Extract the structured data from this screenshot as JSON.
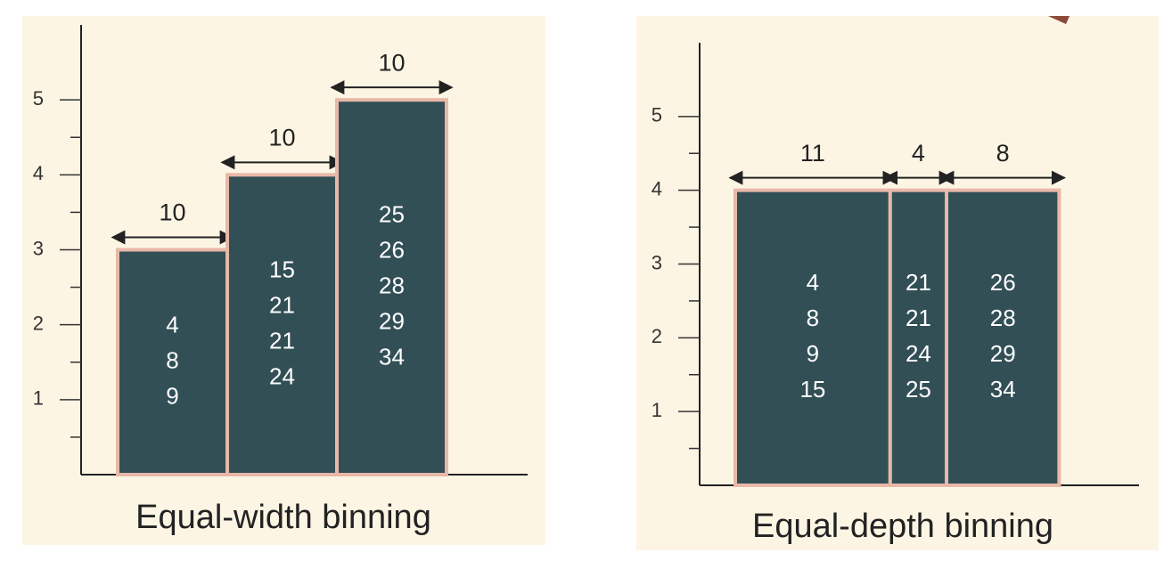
{
  "chart_data": [
    {
      "type": "bar",
      "title": "Equal-width binning",
      "values": [
        3,
        4,
        5
      ],
      "widths": [
        10,
        10,
        10
      ],
      "bin_items": [
        [
          4,
          8,
          9
        ],
        [
          15,
          21,
          21,
          24
        ],
        [
          25,
          26,
          28,
          29,
          34
        ]
      ],
      "color": "#324f56",
      "ylim": [
        0,
        6
      ],
      "yticks": [
        1,
        2,
        3,
        4,
        5
      ],
      "minor_yticks": [
        0.5,
        1.5,
        2.5,
        3.5,
        4.5
      ]
    },
    {
      "type": "bar",
      "title": "Equal-depth binning",
      "values": [
        4,
        4,
        4
      ],
      "widths": [
        11,
        4,
        8
      ],
      "bin_items": [
        [
          4,
          8,
          9,
          15
        ],
        [
          21,
          21,
          24,
          25
        ],
        [
          26,
          28,
          29,
          34
        ]
      ],
      "color": "#324f56",
      "ylim": [
        0,
        6
      ],
      "yticks": [
        1,
        2,
        3,
        4,
        5
      ],
      "minor_yticks": [
        0.5,
        1.5,
        2.5,
        3.5,
        4.5
      ]
    }
  ]
}
